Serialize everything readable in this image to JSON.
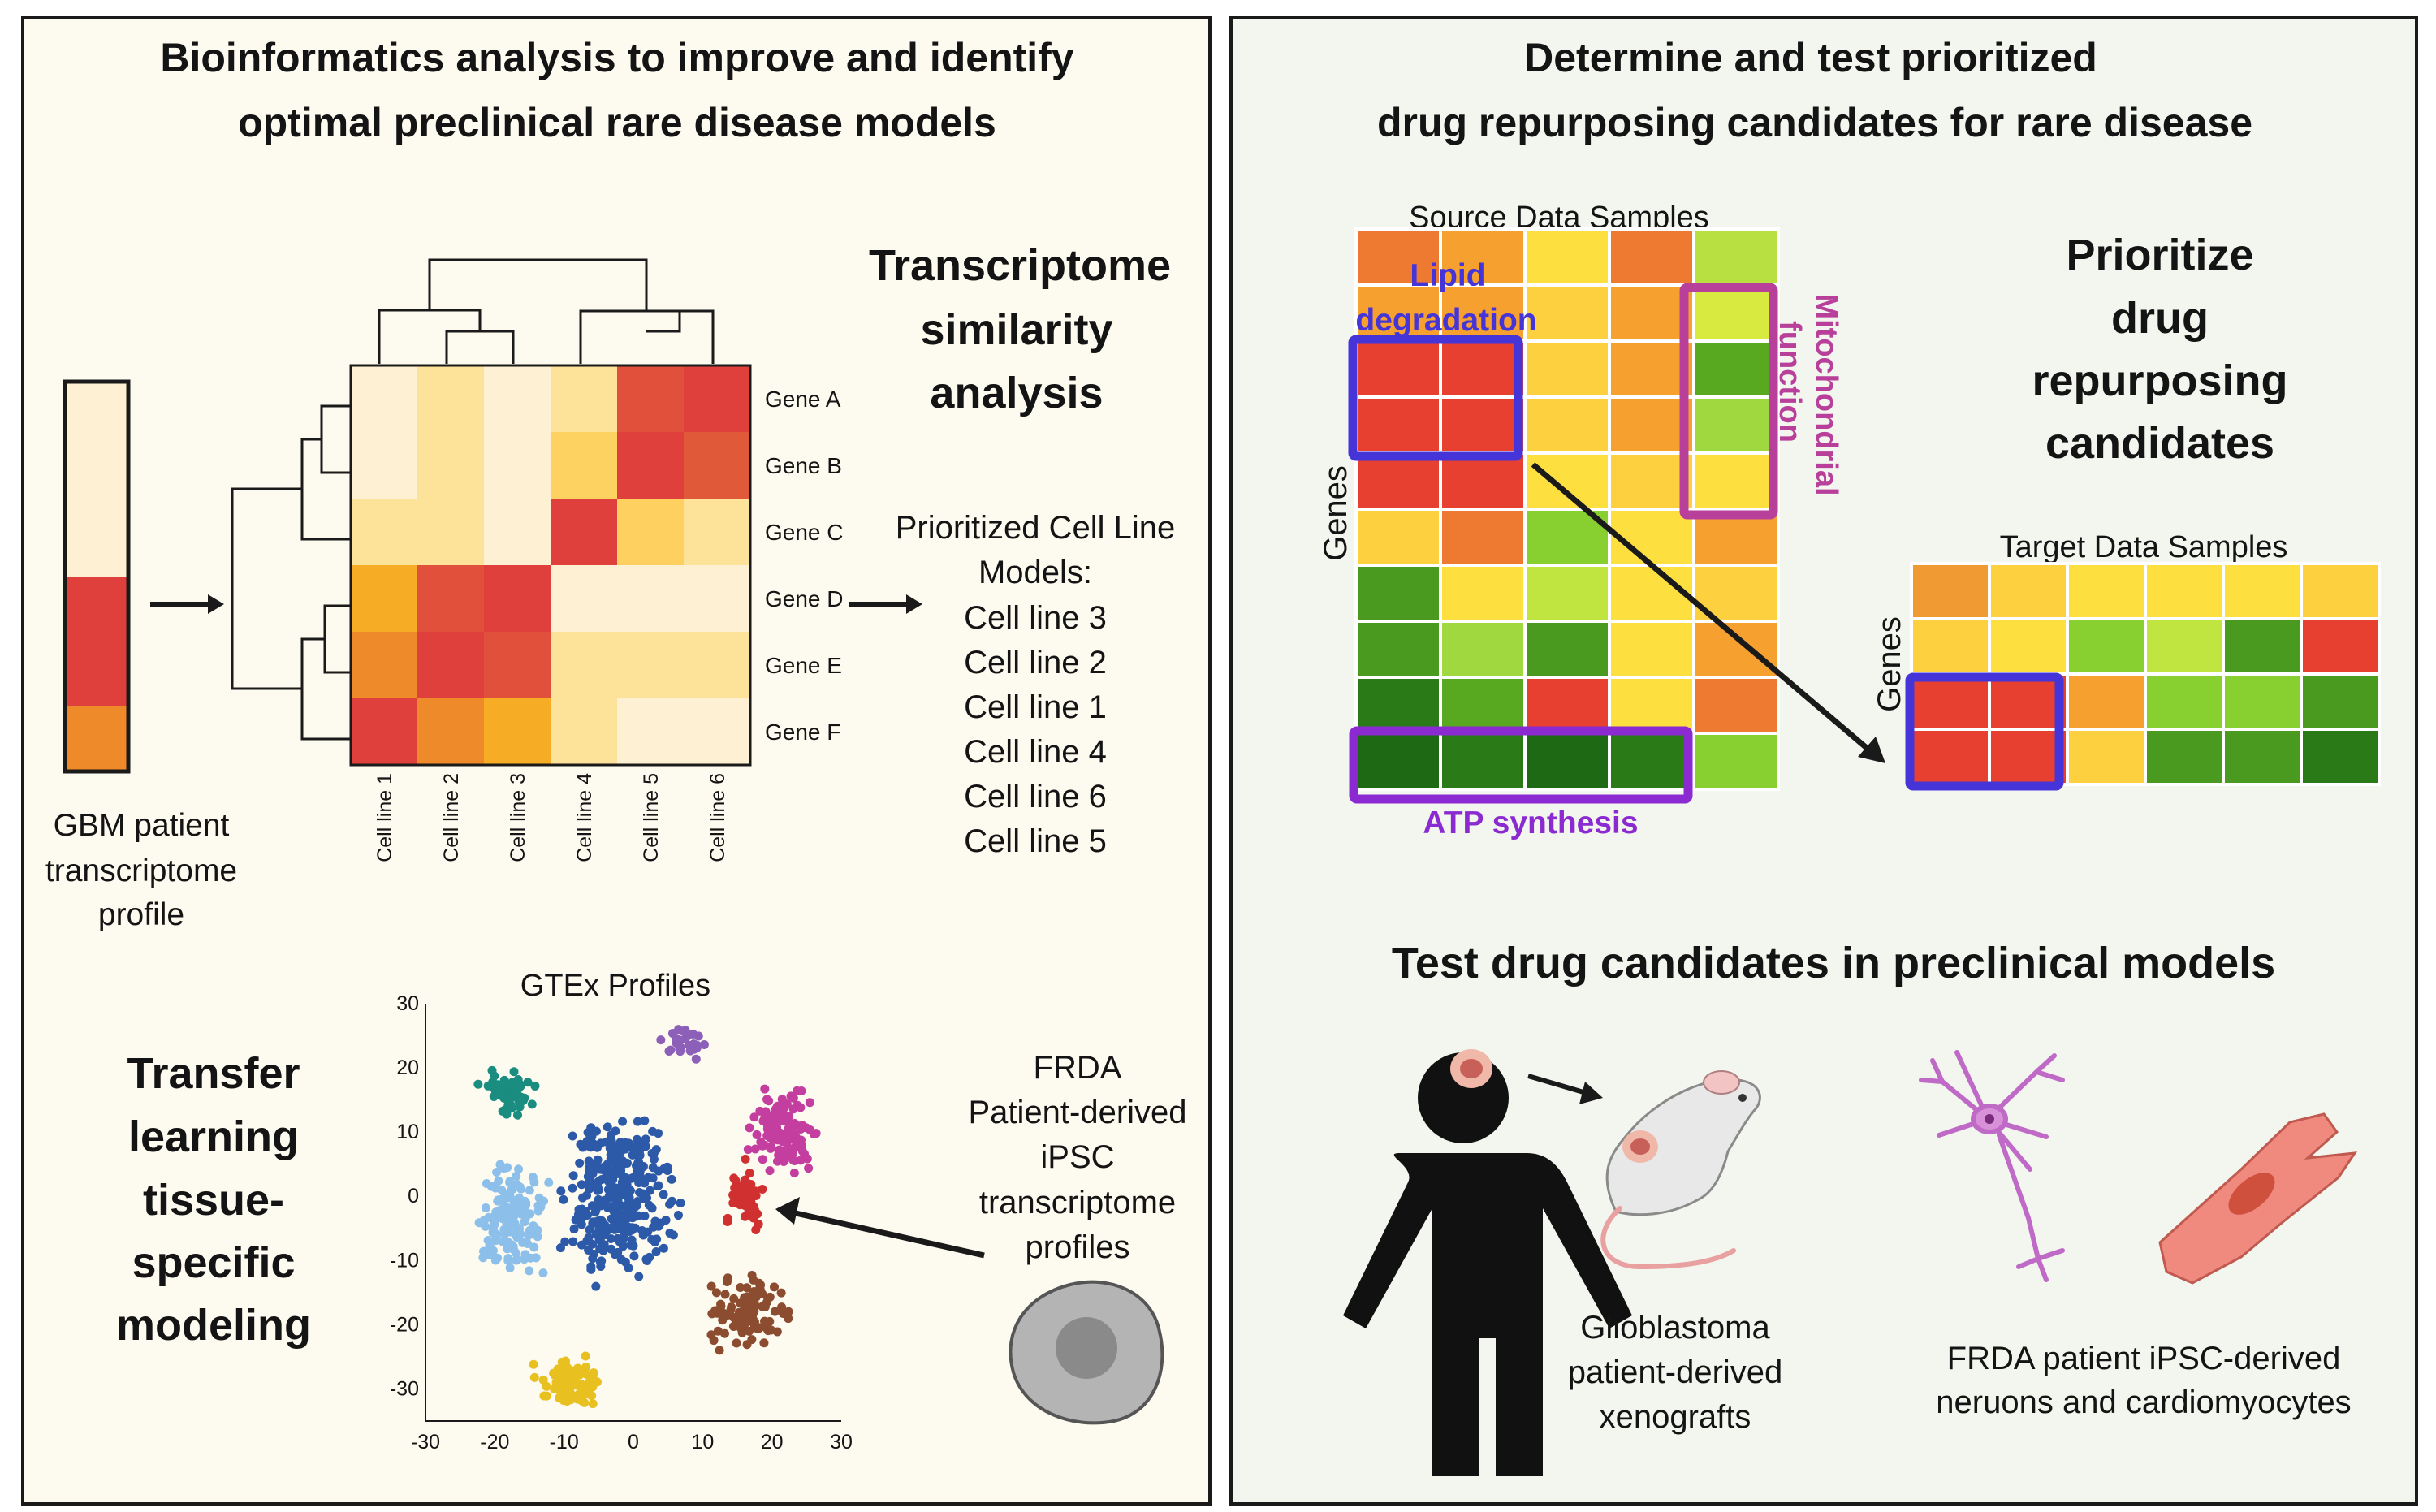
{
  "left_panel": {
    "title_line1": "Bioinformatics analysis to improve and identify",
    "title_line2": "optimal preclinical rare disease models",
    "patient_profile": {
      "label_lines": [
        "GBM patient",
        "transcriptome",
        "profile"
      ],
      "cell_colors": [
        "#fdf0d3",
        "#fdf0d3",
        "#fdf0d3",
        "#e0403c",
        "#e0403c",
        "#ee8a2a"
      ]
    },
    "heatmap": {
      "genes": [
        "Gene A",
        "Gene B",
        "Gene C",
        "Gene D",
        "Gene E",
        "Gene F"
      ],
      "cell_lines": [
        "Cell line 1",
        "Cell line 2",
        "Cell line 3",
        "Cell line 4",
        "Cell line 5",
        "Cell line 6"
      ],
      "colors": [
        [
          "#fdf0d3",
          "#fde39a",
          "#fdf0d3",
          "#fde39a",
          "#e0503a",
          "#e0403c"
        ],
        [
          "#fdf0d3",
          "#fde39a",
          "#fdf0d3",
          "#fdd260",
          "#e0403c",
          "#e05a3a"
        ],
        [
          "#fde39a",
          "#fde39a",
          "#fdf0d3",
          "#e0403c",
          "#fdd060",
          "#fde39a"
        ],
        [
          "#f6ac24",
          "#e0503a",
          "#e0403c",
          "#fdf0d3",
          "#fdf0d3",
          "#fdf0d3"
        ],
        [
          "#ee8a2a",
          "#e0403c",
          "#e0503a",
          "#fde39a",
          "#fde39a",
          "#fde39a"
        ],
        [
          "#e0403c",
          "#ee8a2a",
          "#f6ac24",
          "#fde39a",
          "#fdf0d3",
          "#fdf0d3"
        ]
      ]
    },
    "similarity_title": [
      "Transcriptome",
      "similarity",
      "analysis"
    ],
    "prioritized": {
      "header": [
        "Prioritized Cell Line",
        "Models:"
      ],
      "items": [
        "Cell line 3",
        "Cell line 2",
        "Cell line 1",
        "Cell line 4",
        "Cell line 6",
        "Cell line 5"
      ]
    },
    "transfer_title": [
      "Transfer",
      "learning",
      "tissue-",
      "specific",
      "modeling"
    ],
    "gtex_title": "GTEx Profiles",
    "frda_label": [
      "FRDA",
      "Patient-derived",
      "iPSC",
      "transcriptome",
      "profiles"
    ]
  },
  "chart_data": {
    "type": "scatter",
    "title": "GTEx Profiles",
    "xlabel": "",
    "ylabel": "",
    "xlim": [
      -30,
      30
    ],
    "ylim": [
      -35,
      30
    ],
    "x_ticks": [
      "-30",
      "-20",
      "-10",
      "0",
      "10",
      "20",
      "30"
    ],
    "y_ticks": [
      "30",
      "20",
      "10",
      "0",
      "-10",
      "-20",
      "-30"
    ],
    "clusters": [
      {
        "color": "#1a8c80",
        "center": [
          -18,
          16
        ],
        "spread": [
          3.2,
          3.0
        ],
        "count": 55
      },
      {
        "color": "#8c60b8",
        "center": [
          7,
          24
        ],
        "spread": [
          3.0,
          2.0
        ],
        "count": 30
      },
      {
        "color": "#c43ea0",
        "center": [
          22,
          10
        ],
        "spread": [
          4.0,
          5.0
        ],
        "count": 120
      },
      {
        "color": "#8cc0ea",
        "center": [
          -18,
          -4
        ],
        "spread": [
          4.5,
          7.5
        ],
        "count": 150
      },
      {
        "color": "#2c5aa8",
        "center": [
          -2,
          0
        ],
        "spread": [
          6.5,
          11.5
        ],
        "count": 320
      },
      {
        "color": "#d03030",
        "center": [
          16,
          0
        ],
        "spread": [
          2.6,
          3.8
        ],
        "count": 60
      },
      {
        "color": "#8c4c30",
        "center": [
          17,
          -18
        ],
        "spread": [
          5.0,
          4.5
        ],
        "count": 110
      },
      {
        "color": "#e8c020",
        "center": [
          -9,
          -29
        ],
        "spread": [
          4.2,
          3.2
        ],
        "count": 90
      }
    ]
  },
  "right_panel": {
    "title_line1": "Determine and test prioritized",
    "title_line2": "drug repurposing candidates for rare disease",
    "source_heatmap": {
      "title": "Source Data Samples",
      "axis_label": "Genes",
      "colors": [
        [
          "#ee7a32",
          "#f6a030",
          "#fde040",
          "#ee7a32",
          "#b8e040"
        ],
        [
          "#f6a030",
          "#f6a030",
          "#fdd040",
          "#f6a030",
          "#d8ea40"
        ],
        [
          "#e84030",
          "#e84030",
          "#fdd040",
          "#f6a030",
          "#58a820"
        ],
        [
          "#e84030",
          "#e84030",
          "#fdd040",
          "#f6a030",
          "#a0d840"
        ],
        [
          "#e84030",
          "#e84030",
          "#fde040",
          "#fdd040",
          "#fde040"
        ],
        [
          "#fdd040",
          "#ee7a32",
          "#88d030",
          "#fde040",
          "#f6a030"
        ],
        [
          "#4a9a20",
          "#fde040",
          "#c0e440",
          "#fde040",
          "#fdd040"
        ],
        [
          "#4a9a20",
          "#a0d840",
          "#4a9a20",
          "#fde040",
          "#f6a030"
        ],
        [
          "#2a7a18",
          "#58a820",
          "#e84030",
          "#fde040",
          "#ee7a32"
        ],
        [
          "#1e6a14",
          "#2a7a18",
          "#1e6a14",
          "#2a7a18",
          "#88d030"
        ]
      ],
      "lipid_label": [
        "Lipid",
        "degradation"
      ],
      "mito_label": [
        "Mitochondrial",
        "function"
      ],
      "atp_label": "ATP synthesis"
    },
    "prioritize_title": [
      "Prioritize",
      "drug",
      "repurposing",
      "candidates"
    ],
    "target_heatmap": {
      "title": "Target Data Samples",
      "axis_label": "Genes",
      "colors": [
        [
          "#f09a34",
          "#fdd040",
          "#fde040",
          "#fde040",
          "#fde040",
          "#fdd040"
        ],
        [
          "#fdd040",
          "#fde040",
          "#88d030",
          "#c0e440",
          "#4a9a20",
          "#e84030"
        ],
        [
          "#e84030",
          "#e84030",
          "#f6a030",
          "#88d030",
          "#88d030",
          "#4a9a20"
        ],
        [
          "#e84030",
          "#e84030",
          "#fdd040",
          "#4a9a20",
          "#4a9a20",
          "#2a7a18"
        ]
      ]
    },
    "test_title": "Test drug candidates in preclinical models",
    "xenograft_label": [
      "Glioblastoma",
      "patient-derived",
      "xenografts"
    ],
    "frda_cells_label": [
      "FRDA patient iPSC-derived",
      "neruons and cardiomyocytes"
    ]
  }
}
